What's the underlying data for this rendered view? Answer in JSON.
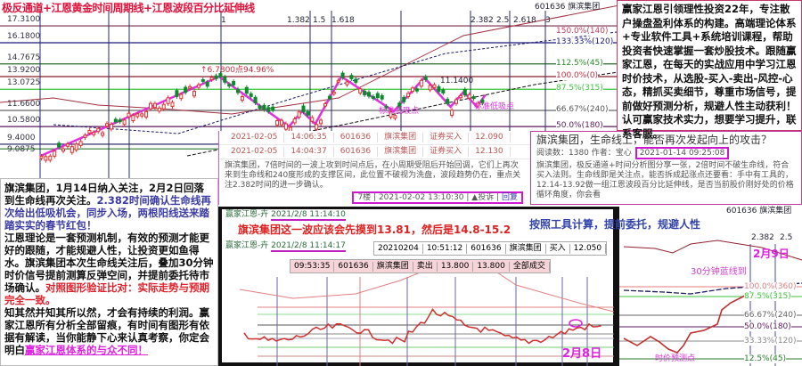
{
  "top_chart": {
    "title": "极反通道+江恩黄金时间周期线+江恩波段百分比延伸线",
    "stock": "601636 旗滨集团",
    "price_levels": [
      "17.3100",
      "16.1800",
      "14.7675",
      "13.9200",
      "13.0725",
      "11.6600",
      "10.5800",
      "9.4000",
      "9.0875"
    ],
    "price_values": [
      17.31,
      16.18,
      14.7675,
      13.92,
      13.0725,
      11.66,
      10.58,
      9.4,
      9.0875
    ],
    "fib_time_labels": [
      "1",
      "1.382",
      "1.5",
      "1.618",
      "2.382",
      "2.5",
      "2.618",
      "3"
    ],
    "pct_labels": [
      "150.0%(140)",
      "133.33%(120)",
      "112.5%(45)",
      "100.0%(0)",
      "87.5%(315)",
      "66.67%(240)",
      "50.0%(180)"
    ],
    "pct_prices": [
      17.3,
      16.18,
      14.7675,
      13.92,
      13.0725,
      11.66,
      10.58
    ],
    "annotation_gain": "↑6.7800点94.96%",
    "annotation_high": "11.1400",
    "label_buy1": "标准低吸点",
    "label_buy2": "标准低吸点",
    "wave": [
      [
        0,
        8.6
      ],
      [
        41,
        13.92
      ],
      [
        57,
        10.58
      ],
      [
        60,
        11.6
      ],
      [
        63,
        10.75
      ],
      [
        69,
        13.92
      ],
      [
        81,
        11.6
      ],
      [
        88,
        13.85
      ],
      [
        94,
        11.9
      ],
      [
        97,
        12.9
      ],
      [
        100,
        11.9
      ],
      [
        102,
        12.7
      ]
    ],
    "colors": {
      "wave": "#e030e0",
      "up": "#e03030",
      "down": "#0a8a2a"
    }
  },
  "intro": {
    "text": "赢家江恩引领理性投资22年，专注散户操盘盈利体系的构建。高端理论体系+专业软件工具+系统培训课程，帮助投资者快速掌握一套炒股技术。跟随赢家江恩，在每天的实战应用中学习江恩时价技术，从选股-买入-卖出-风控-心态，精抓买卖细节，尊重市场信号，提前做好预测分析，规避人性主动获利！认可赢家技术实力，想要学习提升，联系客服。"
  },
  "comment": {
    "rows": [
      [
        "2021-02-05",
        "14:06:35",
        "601636",
        "旗滨集团",
        "证券买入",
        "12.090"
      ],
      [
        "2021-02-05",
        "14:04:37",
        "601636",
        "旗滨集团",
        "证券买入",
        "12.130"
      ]
    ],
    "text": "旗滨集团，7倍时间的一波上攻到时间点后，在小周期受阻后开始回调，它们上再次来到生命线和240度形成的支撑区间，此位置不破视为洗盘，波段趋势仍在，重点关注2.382时间的进一步确认。",
    "floor": "7楼",
    "time": "2021-02-02 13:10:30",
    "report": "▲投诉",
    "reply": "回复"
  },
  "article": {
    "title": "旗滨集团，生命线上，能否再次发起向上的攻击？",
    "meta": "阅读数：1380  作者：宝心",
    "date": "2021-01-14 09:25:08",
    "body": "旗滨集团，极反通道+时间分析图分享一张，2倍时间不破生命线，符合买入法则。生命线即是关注点，能否拆成起涨点还要看：手中有工具的，12.14-13.92做一组江恩波段百分比延伸线，是否当前股价刚好处的价格循环角度，你会看"
  },
  "left_text": {
    "p1": "旗滨集团，1月14日纳入关注，2月2日回落到生命线再次关注。",
    "p1_blue": "2.382时间确认生命线再次给出低吸机会，同步入场，两根阳线送来踏踏实实的春节红包！",
    "p2": "江恩理论是一套预测机制，有效的预测才能更好的跟随，才能规避人性，让投资更如鱼得水。旗滨集团本次生命线关注后，叠加30分钟时价信号提前测算反弹空间，并提前委托待市场确认。",
    "p2_red": "对照图形验证比对：实际走势与预期完全一致。",
    "p3": "知其然并知其所以然，才会有持续的利润。赢家江恩所有分析全部留痕，有时间有图形有依据有解读，当你能静下心来认真考察，你定会明白",
    "p3_link": "赢家江恩体系的与众不同！"
  },
  "mid_chart": {
    "msg1_author": "赢家江恩-卉",
    "msg1_time": "2021/2/8 11:14:10",
    "msg1_text": "旗滨集团这一波应该会先摸到13.81，然后是14.8-15.2",
    "msg2_author": "赢家江恩-卉",
    "msg2_time": "2021/2/8 11:14:17",
    "trade_buy": [
      "20210204",
      "10:51:12",
      "601636",
      "旗滨集团",
      "买入",
      "12.050"
    ],
    "trade_sell": [
      "09:53:35",
      "601636",
      "旗滨集团",
      "卖出",
      "13.800",
      "13.800",
      "全部成交"
    ],
    "slogan": "按照工具计算，提前委托，规避人性",
    "date_label": "2月8日"
  },
  "right_chart": {
    "stock": "601636 旗滨集团",
    "fib": [
      "2.382",
      "2.5"
    ],
    "date_label": "2月9日",
    "note": "30分钟蓝线到",
    "pct_labels": [
      "100.0%(360)",
      "87.5%(315)",
      "66.67%(240)",
      "50.0%(180)",
      "33.33%(120)",
      "12.5%(45)"
    ],
    "bottom_label": "时价预测点"
  }
}
